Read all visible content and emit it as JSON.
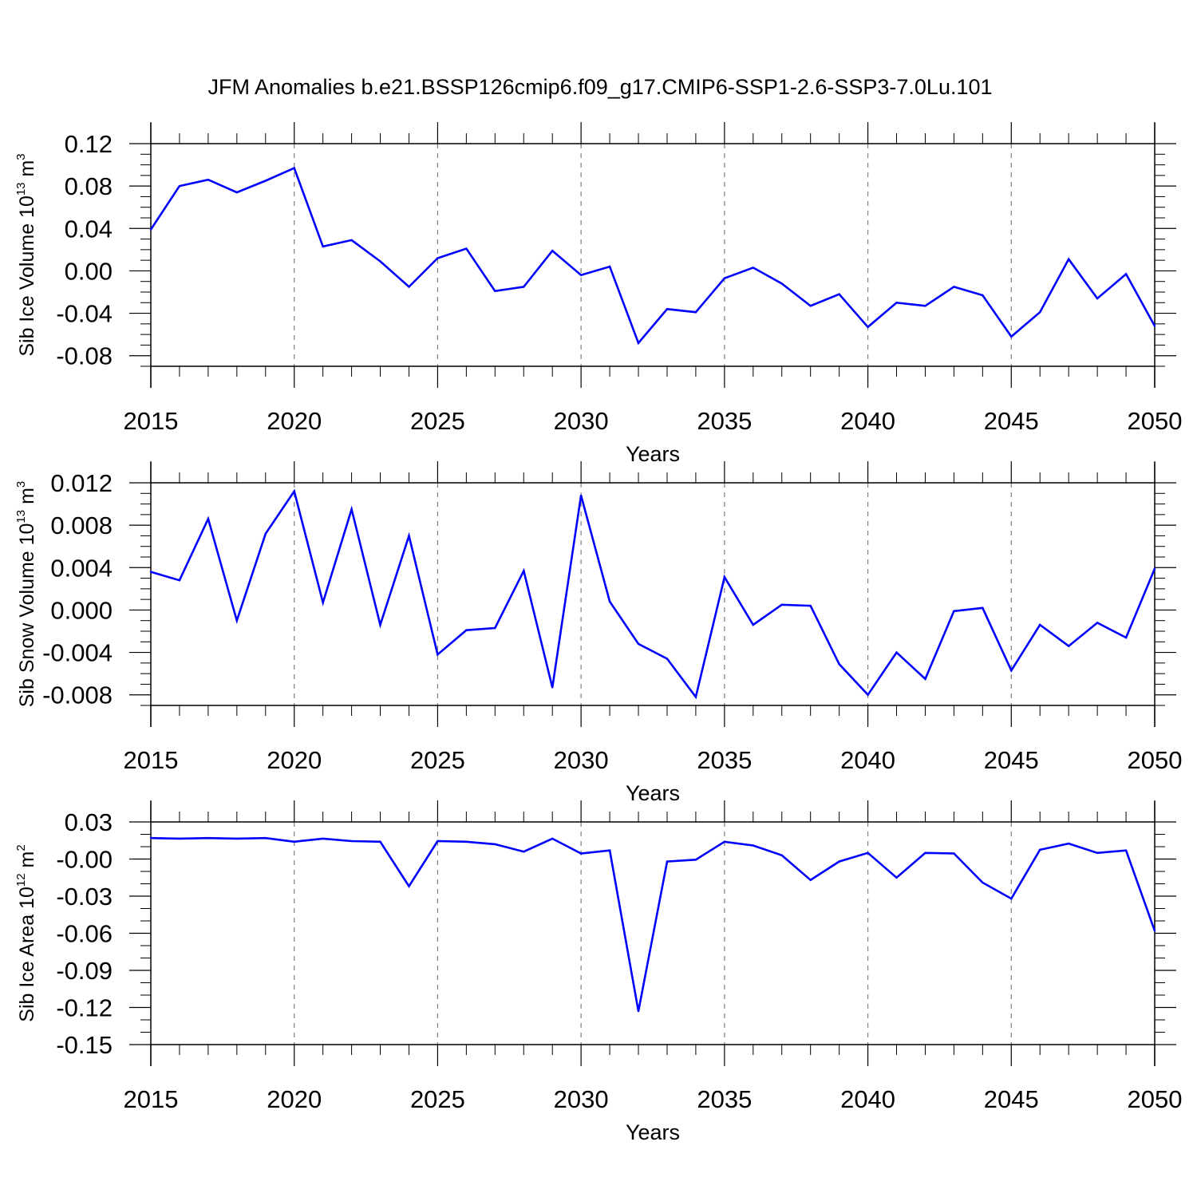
{
  "title": "JFM Anomalies b.e21.BSSP126cmip6.f09_g17.CMIP6-SSP1-2.6-SSP3-7.0Lu.101",
  "colors": {
    "line": "#0000ff",
    "axis": "#000000",
    "grid": "#808080",
    "background": "#ffffff"
  },
  "chart_data": [
    {
      "type": "line",
      "id": "ice-volume",
      "ylabel_main": "Sib Ice Volume 10",
      "ylabel_exp": "13",
      "ylabel_unit": " m",
      "ylabel_unit_exp": "3",
      "xlabel": "Years",
      "xlim": [
        2015,
        2050
      ],
      "ylim": [
        -0.09,
        0.12
      ],
      "yticks": [
        -0.08,
        -0.04,
        0.0,
        0.04,
        0.08,
        0.12
      ],
      "ytick_labels": [
        "-0.08",
        "-0.04",
        "0.00",
        "0.04",
        "0.08",
        "0.12"
      ],
      "yminor": 0.01,
      "xticks": [
        2015,
        2020,
        2025,
        2030,
        2035,
        2040,
        2045,
        2050
      ],
      "xtick_labels": [
        "2015",
        "2020",
        "2025",
        "2030",
        "2035",
        "2040",
        "2045",
        "2050"
      ],
      "grid_x": [
        2020,
        2025,
        2030,
        2035,
        2040,
        2045
      ],
      "x": [
        2015,
        2016,
        2017,
        2018,
        2019,
        2020,
        2021,
        2022,
        2023,
        2024,
        2025,
        2026,
        2027,
        2028,
        2029,
        2030,
        2031,
        2032,
        2033,
        2034,
        2035,
        2036,
        2037,
        2038,
        2039,
        2040,
        2041,
        2042,
        2043,
        2044,
        2045,
        2046,
        2047,
        2048,
        2049,
        2050
      ],
      "y": [
        0.039,
        0.08,
        0.086,
        0.074,
        0.085,
        0.097,
        0.023,
        0.029,
        0.009,
        -0.015,
        0.012,
        0.021,
        -0.019,
        -0.015,
        0.019,
        -0.004,
        0.004,
        -0.068,
        -0.036,
        -0.039,
        -0.007,
        0.003,
        -0.012,
        -0.033,
        -0.022,
        -0.053,
        -0.03,
        -0.033,
        -0.015,
        -0.023,
        -0.062,
        -0.039,
        0.011,
        -0.026,
        -0.003,
        -0.052
      ]
    },
    {
      "type": "line",
      "id": "snow-volume",
      "ylabel_main": "Sib Snow Volume 10",
      "ylabel_exp": "13",
      "ylabel_unit": " m",
      "ylabel_unit_exp": "3",
      "xlabel": "Years",
      "xlim": [
        2015,
        2050
      ],
      "ylim": [
        -0.009,
        0.012
      ],
      "yticks": [
        -0.008,
        -0.004,
        0.0,
        0.004,
        0.008,
        0.012
      ],
      "ytick_labels": [
        "-0.008",
        "-0.004",
        "0.000",
        "0.004",
        "0.008",
        "0.012"
      ],
      "yminor": 0.001,
      "xticks": [
        2015,
        2020,
        2025,
        2030,
        2035,
        2040,
        2045,
        2050
      ],
      "xtick_labels": [
        "2015",
        "2020",
        "2025",
        "2030",
        "2035",
        "2040",
        "2045",
        "2050"
      ],
      "grid_x": [
        2020,
        2025,
        2030,
        2035,
        2040,
        2045
      ],
      "x": [
        2015,
        2016,
        2017,
        2018,
        2019,
        2020,
        2021,
        2022,
        2023,
        2024,
        2025,
        2026,
        2027,
        2028,
        2029,
        2030,
        2031,
        2032,
        2033,
        2034,
        2035,
        2036,
        2037,
        2038,
        2039,
        2040,
        2041,
        2042,
        2043,
        2044,
        2045,
        2046,
        2047,
        2048,
        2049,
        2050
      ],
      "y": [
        0.0036,
        0.0028,
        0.0086,
        -0.001,
        0.0072,
        0.0112,
        0.0007,
        0.0095,
        -0.0014,
        0.007,
        -0.0042,
        -0.0019,
        -0.0017,
        0.0037,
        -0.0073,
        0.0108,
        0.0008,
        -0.0032,
        -0.0046,
        -0.0082,
        0.0031,
        -0.0014,
        0.0005,
        0.0004,
        -0.0051,
        -0.008,
        -0.004,
        -0.0065,
        -0.0001,
        0.0002,
        -0.0057,
        -0.0014,
        -0.0034,
        -0.0012,
        -0.0026,
        0.0039
      ]
    },
    {
      "type": "line",
      "id": "ice-area",
      "ylabel_main": "Sib Ice Area 10",
      "ylabel_exp": "12",
      "ylabel_unit": " m",
      "ylabel_unit_exp": "2",
      "xlabel": "Years",
      "xlim": [
        2015,
        2050
      ],
      "ylim": [
        -0.15,
        0.03
      ],
      "yticks": [
        -0.15,
        -0.12,
        -0.09,
        -0.06,
        -0.03,
        0.0,
        0.03
      ],
      "ytick_labels": [
        "-0.15",
        "-0.12",
        "-0.09",
        "-0.06",
        "-0.03",
        "-0.00",
        "0.03"
      ],
      "yminor": 0.01,
      "xticks": [
        2015,
        2020,
        2025,
        2030,
        2035,
        2040,
        2045,
        2050
      ],
      "xtick_labels": [
        "2015",
        "2020",
        "2025",
        "2030",
        "2035",
        "2040",
        "2045",
        "2050"
      ],
      "grid_x": [
        2020,
        2025,
        2030,
        2035,
        2040,
        2045
      ],
      "x": [
        2015,
        2016,
        2017,
        2018,
        2019,
        2020,
        2021,
        2022,
        2023,
        2024,
        2025,
        2026,
        2027,
        2028,
        2029,
        2030,
        2031,
        2032,
        2033,
        2034,
        2035,
        2036,
        2037,
        2038,
        2039,
        2040,
        2041,
        2042,
        2043,
        2044,
        2045,
        2046,
        2047,
        2048,
        2049,
        2050
      ],
      "y": [
        0.017,
        0.0165,
        0.017,
        0.0165,
        0.017,
        0.014,
        0.0165,
        0.0145,
        0.014,
        -0.022,
        0.0145,
        0.014,
        0.012,
        0.006,
        0.0165,
        0.0045,
        0.007,
        -0.123,
        -0.002,
        -0.0005,
        0.014,
        0.011,
        0.003,
        -0.017,
        -0.002,
        0.005,
        -0.015,
        0.005,
        0.0045,
        -0.019,
        -0.032,
        0.0075,
        0.0125,
        0.005,
        0.007,
        -0.058
      ]
    }
  ]
}
